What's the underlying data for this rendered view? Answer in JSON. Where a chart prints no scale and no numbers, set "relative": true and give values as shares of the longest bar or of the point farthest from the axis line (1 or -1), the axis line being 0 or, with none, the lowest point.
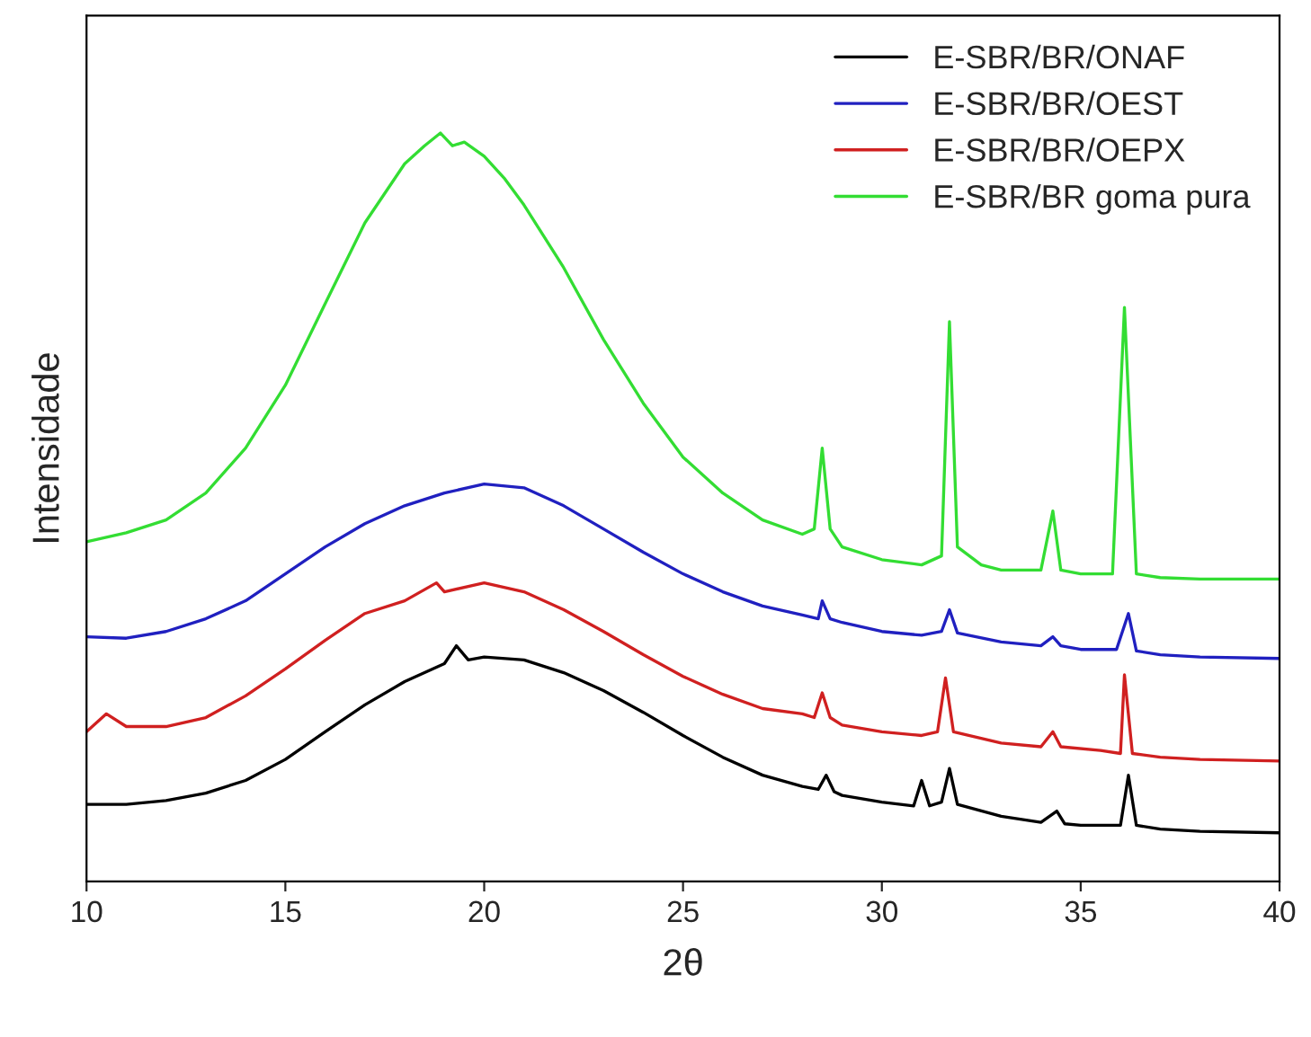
{
  "chart_data": {
    "type": "line",
    "xlabel": "2θ",
    "ylabel": "Intensidade",
    "relative": true,
    "xlim": [
      10,
      40
    ],
    "xticks": [
      10,
      15,
      20,
      25,
      30,
      35,
      40
    ],
    "tick_labels": "x",
    "legend": "top right",
    "grid": false,
    "series": [
      {
        "name": "E-SBR/BR/ONAF",
        "color": "#000000",
        "x": [
          10,
          11,
          12,
          13,
          14,
          15,
          16,
          17,
          18,
          19,
          19.3,
          19.6,
          20,
          21,
          22,
          23,
          24,
          25,
          26,
          27,
          28,
          28.4,
          28.6,
          28.8,
          29,
          30,
          30.8,
          31,
          31.2,
          31.5,
          31.7,
          31.9,
          33,
          34,
          34.4,
          34.6,
          35,
          36,
          36.2,
          36.4,
          37,
          38,
          40
        ],
        "values": [
          0.103,
          0.103,
          0.108,
          0.118,
          0.135,
          0.163,
          0.2,
          0.236,
          0.267,
          0.291,
          0.315,
          0.296,
          0.3,
          0.296,
          0.279,
          0.255,
          0.226,
          0.195,
          0.166,
          0.142,
          0.127,
          0.123,
          0.142,
          0.12,
          0.115,
          0.106,
          0.101,
          0.135,
          0.101,
          0.106,
          0.151,
          0.103,
          0.087,
          0.079,
          0.094,
          0.077,
          0.075,
          0.075,
          0.142,
          0.075,
          0.07,
          0.067,
          0.065
        ]
      },
      {
        "name": "E-SBR/BR/OEST",
        "color": "#2020c0",
        "x": [
          10,
          11,
          12,
          13,
          14,
          15,
          16,
          17,
          18,
          19,
          20,
          21,
          22,
          23,
          24,
          25,
          26,
          27,
          28,
          28.4,
          28.5,
          28.7,
          29,
          30,
          31,
          31.5,
          31.7,
          31.9,
          33,
          34,
          34.3,
          34.5,
          35,
          35.9,
          36.2,
          36.4,
          37,
          38,
          40
        ],
        "values": [
          0.327,
          0.325,
          0.334,
          0.351,
          0.375,
          0.411,
          0.447,
          0.478,
          0.502,
          0.519,
          0.531,
          0.526,
          0.502,
          0.471,
          0.44,
          0.411,
          0.387,
          0.368,
          0.356,
          0.351,
          0.375,
          0.351,
          0.346,
          0.334,
          0.329,
          0.334,
          0.363,
          0.332,
          0.32,
          0.315,
          0.327,
          0.315,
          0.31,
          0.31,
          0.358,
          0.308,
          0.303,
          0.3,
          0.298
        ]
      },
      {
        "name": "E-SBR/BR/OEPX",
        "color": "#d02020",
        "x": [
          10,
          10.5,
          11,
          12,
          13,
          14,
          15,
          16,
          17,
          18,
          18.8,
          19,
          20,
          21,
          22,
          23,
          24,
          25,
          26,
          27,
          28,
          28.3,
          28.5,
          28.7,
          29,
          30,
          31,
          31.4,
          31.6,
          31.8,
          33,
          34,
          34.3,
          34.5,
          35.5,
          36.0,
          36.1,
          36.3,
          37,
          38,
          40
        ],
        "values": [
          0.2,
          0.224,
          0.207,
          0.207,
          0.219,
          0.248,
          0.284,
          0.322,
          0.358,
          0.375,
          0.399,
          0.387,
          0.399,
          0.387,
          0.363,
          0.334,
          0.303,
          0.274,
          0.25,
          0.231,
          0.224,
          0.219,
          0.252,
          0.219,
          0.209,
          0.2,
          0.195,
          0.2,
          0.272,
          0.2,
          0.185,
          0.18,
          0.2,
          0.18,
          0.175,
          0.171,
          0.276,
          0.171,
          0.166,
          0.163,
          0.161
        ]
      },
      {
        "name": "E-SBR/BR goma pura",
        "color": "#33dd33",
        "x": [
          10,
          11,
          12,
          13,
          14,
          15,
          16,
          17,
          18,
          18.5,
          18.9,
          19.2,
          19.5,
          20,
          20.5,
          21,
          22,
          23,
          24,
          25,
          26,
          27,
          28,
          28.3,
          28.5,
          28.7,
          29,
          30,
          31,
          31.5,
          31.7,
          31.9,
          32.5,
          33,
          34,
          34.3,
          34.5,
          35,
          35.8,
          36.1,
          36.4,
          37,
          38,
          39,
          40
        ],
        "values": [
          0.454,
          0.466,
          0.483,
          0.519,
          0.579,
          0.663,
          0.772,
          0.88,
          0.959,
          0.983,
          1.0,
          0.983,
          0.988,
          0.969,
          0.94,
          0.904,
          0.82,
          0.724,
          0.639,
          0.567,
          0.519,
          0.483,
          0.464,
          0.471,
          0.579,
          0.471,
          0.447,
          0.43,
          0.423,
          0.435,
          0.748,
          0.447,
          0.423,
          0.416,
          0.416,
          0.495,
          0.416,
          0.411,
          0.411,
          0.767,
          0.411,
          0.406,
          0.404,
          0.404,
          0.404
        ]
      }
    ]
  }
}
